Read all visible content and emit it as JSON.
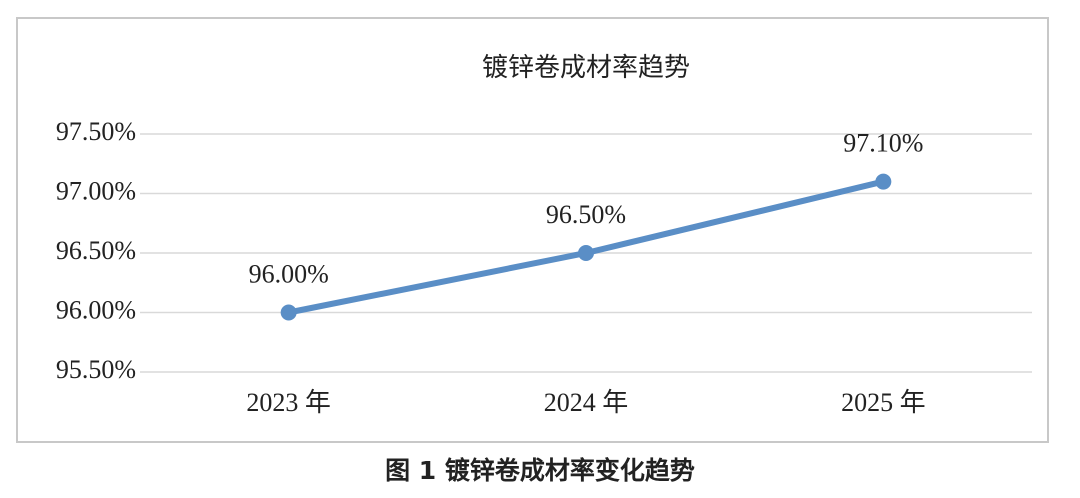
{
  "chart_data": {
    "type": "line",
    "title": "镀锌卷成材率趋势",
    "categories": [
      "2023 年",
      "2024 年",
      "2025 年"
    ],
    "series": [
      {
        "name": "成材率",
        "color": "#5a8ec6",
        "values": [
          96.0,
          96.5,
          97.1
        ],
        "value_labels": [
          "96.00%",
          "96.50%",
          "97.10%"
        ]
      }
    ],
    "ylim": [
      95.5,
      97.5
    ],
    "yticks": [
      {
        "value": 95.5,
        "label": "95.50%"
      },
      {
        "value": 96.0,
        "label": "96.00%"
      },
      {
        "value": 96.5,
        "label": "96.50%"
      },
      {
        "value": 97.0,
        "label": "97.00%"
      },
      {
        "value": 97.5,
        "label": "97.50%"
      }
    ],
    "grid": true,
    "caption": "图 1  镀锌卷成材率变化趋势"
  }
}
